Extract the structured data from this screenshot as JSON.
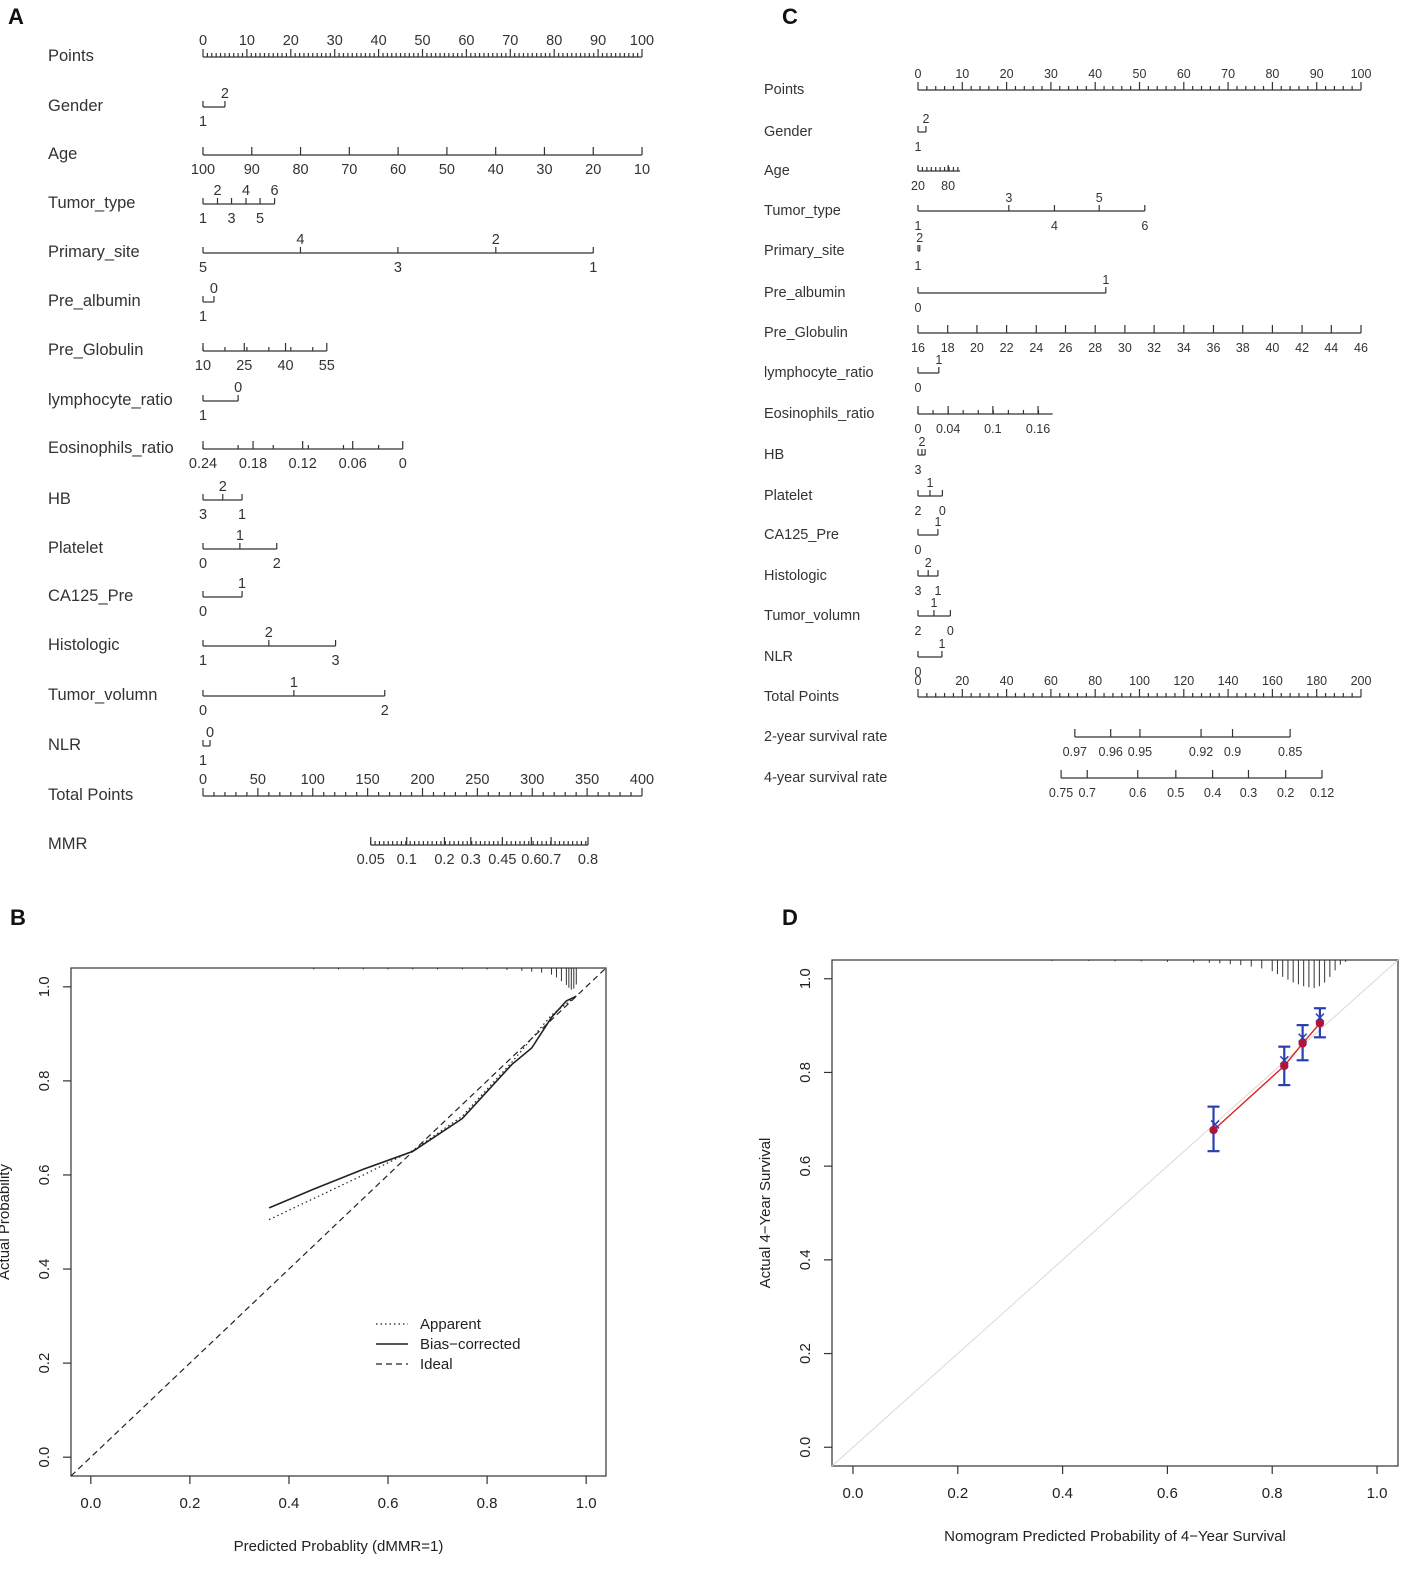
{
  "panels": {
    "A": "A",
    "B": "B",
    "C": "C",
    "D": "D"
  },
  "chart_data": [
    {
      "type": "nomogram",
      "panel": "A",
      "rows": [
        {
          "label": "Points",
          "kind": "points",
          "range": [
            0,
            100
          ],
          "step": 10,
          "minor": 1
        },
        {
          "label": "Gender",
          "ticks": [
            {
              "v": 0,
              "t": "1",
              "pos": "below"
            },
            {
              "v": 5,
              "t": "2",
              "pos": "above"
            }
          ]
        },
        {
          "label": "Age",
          "ticks": [
            {
              "v": 0,
              "t": "100"
            },
            {
              "v": 11.11,
              "t": "90"
            },
            {
              "v": 22.22,
              "t": "80"
            },
            {
              "v": 33.33,
              "t": "70"
            },
            {
              "v": 44.44,
              "t": "60"
            },
            {
              "v": 55.56,
              "t": "50"
            },
            {
              "v": 66.67,
              "t": "40"
            },
            {
              "v": 77.78,
              "t": "30"
            },
            {
              "v": 88.89,
              "t": "20"
            },
            {
              "v": 100,
              "t": "10"
            }
          ]
        },
        {
          "label": "Tumor_type",
          "ticks": [
            {
              "v": 0,
              "t": "1",
              "pos": "below"
            },
            {
              "v": 3.3,
              "t": "2",
              "pos": "above"
            },
            {
              "v": 6.5,
              "t": "3",
              "pos": "below"
            },
            {
              "v": 9.8,
              "t": "4",
              "pos": "above"
            },
            {
              "v": 13,
              "t": "5",
              "pos": "below"
            },
            {
              "v": 16.3,
              "t": "6",
              "pos": "above"
            }
          ]
        },
        {
          "label": "Primary_site",
          "ticks": [
            {
              "v": 0,
              "t": "5",
              "pos": "below"
            },
            {
              "v": 22.2,
              "t": "4",
              "pos": "above"
            },
            {
              "v": 44.4,
              "t": "3",
              "pos": "below"
            },
            {
              "v": 66.7,
              "t": "2",
              "pos": "above"
            },
            {
              "v": 88.9,
              "t": "1",
              "pos": "below"
            }
          ]
        },
        {
          "label": "Pre_albumin",
          "ticks": [
            {
              "v": 0,
              "t": "1",
              "pos": "below"
            },
            {
              "v": 2.5,
              "t": "0",
              "pos": "above"
            }
          ]
        },
        {
          "label": "Pre_Globulin",
          "ticks": [
            {
              "v": 0,
              "t": "10"
            },
            {
              "v": 9.4,
              "t": "25"
            },
            {
              "v": 18.8,
              "t": "40"
            },
            {
              "v": 28.2,
              "t": "55"
            }
          ],
          "minor_every": 5
        },
        {
          "label": "lymphocyte_ratio",
          "ticks": [
            {
              "v": 0,
              "t": "1",
              "pos": "below"
            },
            {
              "v": 8,
              "t": "0",
              "pos": "above"
            }
          ]
        },
        {
          "label": "Eosinophils_ratio",
          "ticks": [
            {
              "v": 0,
              "t": "0.24"
            },
            {
              "v": 11.4,
              "t": "0.18"
            },
            {
              "v": 22.7,
              "t": "0.12"
            },
            {
              "v": 34.1,
              "t": "0.06"
            },
            {
              "v": 45.5,
              "t": "0"
            }
          ],
          "minor_every": 8
        },
        {
          "label": "HB",
          "ticks": [
            {
              "v": 0,
              "t": "3",
              "pos": "below"
            },
            {
              "v": 4.5,
              "t": "2",
              "pos": "above"
            },
            {
              "v": 8.9,
              "t": "1",
              "pos": "below"
            }
          ]
        },
        {
          "label": "Platelet",
          "ticks": [
            {
              "v": 0,
              "t": "0",
              "pos": "below"
            },
            {
              "v": 8.4,
              "t": "1",
              "pos": "above"
            },
            {
              "v": 16.8,
              "t": "2",
              "pos": "below"
            }
          ]
        },
        {
          "label": "CA125_Pre",
          "ticks": [
            {
              "v": 0,
              "t": "0",
              "pos": "below"
            },
            {
              "v": 8.9,
              "t": "1",
              "pos": "above"
            }
          ]
        },
        {
          "label": "Histologic",
          "ticks": [
            {
              "v": 0,
              "t": "1",
              "pos": "below"
            },
            {
              "v": 15,
              "t": "2",
              "pos": "above"
            },
            {
              "v": 30.2,
              "t": "3",
              "pos": "below"
            }
          ]
        },
        {
          "label": "Tumor_volumn",
          "ticks": [
            {
              "v": 0,
              "t": "0",
              "pos": "below"
            },
            {
              "v": 20.7,
              "t": "1",
              "pos": "above"
            },
            {
              "v": 41.4,
              "t": "2",
              "pos": "below"
            }
          ]
        },
        {
          "label": "NLR",
          "ticks": [
            {
              "v": 0,
              "t": "1",
              "pos": "below"
            },
            {
              "v": 1.6,
              "t": "0",
              "pos": "above"
            }
          ]
        },
        {
          "label": "Total Points",
          "kind": "points",
          "range": [
            0,
            400
          ],
          "step": 50,
          "minor": 10
        },
        {
          "label": "MMR",
          "ticks": [
            {
              "v": 38.2,
              "t": "0.05"
            },
            {
              "v": 46.4,
              "t": "0.1"
            },
            {
              "v": 55,
              "t": "0.2"
            },
            {
              "v": 61,
              "t": "0.3"
            },
            {
              "v": 68.2,
              "t": "0.45"
            },
            {
              "v": 74.8,
              "t": "0.6"
            },
            {
              "v": 79.3,
              "t": "0.7"
            },
            {
              "v": 87.7,
              "t": "0.8"
            }
          ],
          "minor_every": 1
        }
      ]
    },
    {
      "type": "line",
      "panel": "B",
      "xlabel": "Predicted Probablity (dMMR=1)",
      "ylabel": "Actual Probability",
      "xlim": [
        -0.04,
        1.04
      ],
      "ylim": [
        -0.04,
        1.04
      ],
      "xticks": [
        "0.0",
        "0.2",
        "0.4",
        "0.6",
        "0.8",
        "1.0"
      ],
      "yticks": [
        "0.0",
        "0.2",
        "0.4",
        "0.6",
        "0.8",
        "1.0"
      ],
      "series": [
        {
          "name": "Apparent",
          "style": "dotted",
          "x": [
            0.36,
            0.45,
            0.55,
            0.65,
            0.75,
            0.85,
            0.93,
            0.98
          ],
          "y": [
            0.505,
            0.55,
            0.6,
            0.652,
            0.725,
            0.84,
            0.94,
            0.98
          ]
        },
        {
          "name": "Bias-corrected",
          "style": "solid",
          "x": [
            0.36,
            0.45,
            0.55,
            0.65,
            0.75,
            0.85,
            0.89,
            0.93,
            0.96,
            0.98
          ],
          "y": [
            0.53,
            0.57,
            0.612,
            0.65,
            0.72,
            0.835,
            0.87,
            0.935,
            0.97,
            0.98
          ]
        },
        {
          "name": "Ideal",
          "style": "dashed",
          "x": [
            -0.04,
            1.04
          ],
          "y": [
            -0.04,
            1.04
          ]
        }
      ],
      "rug_x": [
        0.45,
        0.5,
        0.55,
        0.6,
        0.65,
        0.7,
        0.75,
        0.8,
        0.84,
        0.87,
        0.89,
        0.91,
        0.93,
        0.94,
        0.95,
        0.96,
        0.965,
        0.97,
        0.975,
        0.98
      ],
      "rug_h": [
        0.003,
        0.003,
        0.003,
        0.003,
        0.003,
        0.003,
        0.003,
        0.003,
        0.004,
        0.006,
        0.008,
        0.01,
        0.014,
        0.02,
        0.028,
        0.036,
        0.042,
        0.046,
        0.044,
        0.035
      ],
      "legend": [
        "Apparent",
        "Bias−corrected",
        "Ideal"
      ]
    },
    {
      "type": "nomogram",
      "panel": "C",
      "rows": [
        {
          "label": "Points",
          "kind": "points",
          "range": [
            0,
            100
          ],
          "step": 10,
          "minor": 2
        },
        {
          "label": "Gender",
          "ticks": [
            {
              "v": 0,
              "t": "1",
              "pos": "below"
            },
            {
              "v": 1.8,
              "t": "2",
              "pos": "above"
            }
          ]
        },
        {
          "label": "Age",
          "ticks": [
            {
              "v": 0,
              "t": "20",
              "pos": "below"
            },
            {
              "v": 6.8,
              "t": "80",
              "pos": "below"
            }
          ],
          "minor_every": 1,
          "end": 9.5
        },
        {
          "label": "Tumor_type",
          "ticks": [
            {
              "v": 0,
              "t": "1",
              "pos": "below"
            },
            {
              "v": 20.5,
              "t": "3",
              "pos": "above"
            },
            {
              "v": 30.8,
              "t": "4",
              "pos": "below"
            },
            {
              "v": 40.9,
              "t": "5",
              "pos": "above"
            },
            {
              "v": 51.2,
              "t": "6",
              "pos": "below"
            }
          ]
        },
        {
          "label": "Primary_site",
          "ticks": [
            {
              "v": 0,
              "t": "1",
              "pos": "below"
            },
            {
              "v": 0.4,
              "t": "2",
              "pos": "above"
            }
          ]
        },
        {
          "label": "Pre_albumin",
          "ticks": [
            {
              "v": 0,
              "t": "0",
              "pos": "below"
            },
            {
              "v": 42.4,
              "t": "1",
              "pos": "above"
            }
          ]
        },
        {
          "label": "Pre_Globulin",
          "ticks": [
            {
              "v": 0,
              "t": "16"
            },
            {
              "v": 6.7,
              "t": "18"
            },
            {
              "v": 13.3,
              "t": "20"
            },
            {
              "v": 20,
              "t": "22"
            },
            {
              "v": 26.7,
              "t": "24"
            },
            {
              "v": 33.3,
              "t": "26"
            },
            {
              "v": 40,
              "t": "28"
            },
            {
              "v": 46.7,
              "t": "30"
            },
            {
              "v": 53.3,
              "t": "32"
            },
            {
              "v": 60,
              "t": "34"
            },
            {
              "v": 66.7,
              "t": "36"
            },
            {
              "v": 73.3,
              "t": "38"
            },
            {
              "v": 80,
              "t": "40"
            },
            {
              "v": 86.7,
              "t": "42"
            },
            {
              "v": 93.3,
              "t": "44"
            },
            {
              "v": 100,
              "t": "46"
            }
          ]
        },
        {
          "label": "lymphocyte_ratio",
          "ticks": [
            {
              "v": 0,
              "t": "0",
              "pos": "below"
            },
            {
              "v": 4.7,
              "t": "1",
              "pos": "above"
            }
          ]
        },
        {
          "label": "Eosinophils_ratio",
          "ticks": [
            {
              "v": 0,
              "t": "0"
            },
            {
              "v": 6.8,
              "t": "0.04"
            },
            {
              "v": 16.9,
              "t": "0.1"
            },
            {
              "v": 27.1,
              "t": "0.16"
            }
          ],
          "minor_every": 3.4,
          "end": 30.4
        },
        {
          "label": "HB",
          "ticks": [
            {
              "v": 0,
              "t": "3",
              "pos": "below"
            },
            {
              "v": 0.9,
              "t": "2",
              "pos": "above"
            },
            {
              "v": 1.6,
              "t": "",
              "pos": "below"
            }
          ]
        },
        {
          "label": "Platelet",
          "ticks": [
            {
              "v": 0,
              "t": "2",
              "pos": "below"
            },
            {
              "v": 2.7,
              "t": "1",
              "pos": "above"
            },
            {
              "v": 5.5,
              "t": "0",
              "pos": "below"
            }
          ]
        },
        {
          "label": "CA125_Pre",
          "ticks": [
            {
              "v": 0,
              "t": "0",
              "pos": "below"
            },
            {
              "v": 4.5,
              "t": "1",
              "pos": "above"
            }
          ]
        },
        {
          "label": "Histologic",
          "ticks": [
            {
              "v": 0,
              "t": "3",
              "pos": "below"
            },
            {
              "v": 2.3,
              "t": "2",
              "pos": "above"
            },
            {
              "v": 4.5,
              "t": "1",
              "pos": "below"
            }
          ]
        },
        {
          "label": "Tumor_volumn",
          "ticks": [
            {
              "v": 0,
              "t": "2",
              "pos": "below"
            },
            {
              "v": 3.6,
              "t": "1",
              "pos": "above"
            },
            {
              "v": 7.3,
              "t": "0",
              "pos": "below"
            }
          ]
        },
        {
          "label": "NLR",
          "ticks": [
            {
              "v": 0,
              "t": "0",
              "pos": "below"
            },
            {
              "v": 5.4,
              "t": "1",
              "pos": "above"
            }
          ]
        },
        {
          "label": "Total Points",
          "kind": "points",
          "range": [
            0,
            200
          ],
          "step": 20,
          "minor": 4
        },
        {
          "label": "2-year survival rate",
          "ticks": [
            {
              "v": 35.4,
              "t": "0.97"
            },
            {
              "v": 43.5,
              "t": "0.96"
            },
            {
              "v": 50.1,
              "t": "0.95"
            },
            {
              "v": 63.9,
              "t": "0.92"
            },
            {
              "v": 71,
              "t": "0.9"
            },
            {
              "v": 84,
              "t": "0.85"
            }
          ],
          "minor_every": 0
        },
        {
          "label": "4-year survival rate",
          "ticks": [
            {
              "v": 32.3,
              "t": "0.75"
            },
            {
              "v": 38.2,
              "t": "0.7"
            },
            {
              "v": 49.6,
              "t": "0.6"
            },
            {
              "v": 58.2,
              "t": "0.5"
            },
            {
              "v": 66.5,
              "t": "0.4"
            },
            {
              "v": 74.6,
              "t": "0.3"
            },
            {
              "v": 83,
              "t": "0.2"
            },
            {
              "v": 91.2,
              "t": "0.12"
            }
          ],
          "minor_every": 0
        }
      ]
    },
    {
      "type": "scatter",
      "panel": "D",
      "xlabel": "Nomogram Predicted Probability of 4−Year Survival",
      "ylabel": "Actual 4−Year Survival",
      "xlim": [
        -0.04,
        1.04
      ],
      "ylim": [
        -0.04,
        1.04
      ],
      "xticks": [
        "0.0",
        "0.2",
        "0.4",
        "0.6",
        "0.8",
        "1.0"
      ],
      "yticks": [
        "0.0",
        "0.2",
        "0.4",
        "0.6",
        "0.8",
        "1.0"
      ],
      "points": [
        {
          "x": 0.688,
          "y": 0.677,
          "xhat": 0.691,
          "lo": 0.632,
          "hi": 0.727
        },
        {
          "x": 0.823,
          "y": 0.814,
          "xhat": 0.823,
          "lo": 0.773,
          "hi": 0.855
        },
        {
          "x": 0.858,
          "y": 0.862,
          "xhat": 0.858,
          "lo": 0.826,
          "hi": 0.901
        },
        {
          "x": 0.891,
          "y": 0.905,
          "xhat": 0.891,
          "lo": 0.875,
          "hi": 0.937
        }
      ],
      "rug_x": [
        0.38,
        0.45,
        0.5,
        0.55,
        0.6,
        0.65,
        0.68,
        0.7,
        0.72,
        0.74,
        0.76,
        0.78,
        0.8,
        0.81,
        0.82,
        0.83,
        0.84,
        0.85,
        0.86,
        0.87,
        0.88,
        0.89,
        0.9,
        0.91,
        0.92,
        0.93,
        0.94
      ],
      "rug_h": [
        0.002,
        0.002,
        0.003,
        0.003,
        0.004,
        0.005,
        0.006,
        0.007,
        0.009,
        0.011,
        0.014,
        0.018,
        0.024,
        0.03,
        0.036,
        0.042,
        0.048,
        0.052,
        0.056,
        0.058,
        0.06,
        0.056,
        0.048,
        0.036,
        0.022,
        0.01,
        0.004
      ],
      "colors": {
        "point": "#b0143a",
        "errorbar": "#2a3fb0",
        "fit": "#e02020",
        "ideal": "#d8d8d8"
      }
    }
  ]
}
